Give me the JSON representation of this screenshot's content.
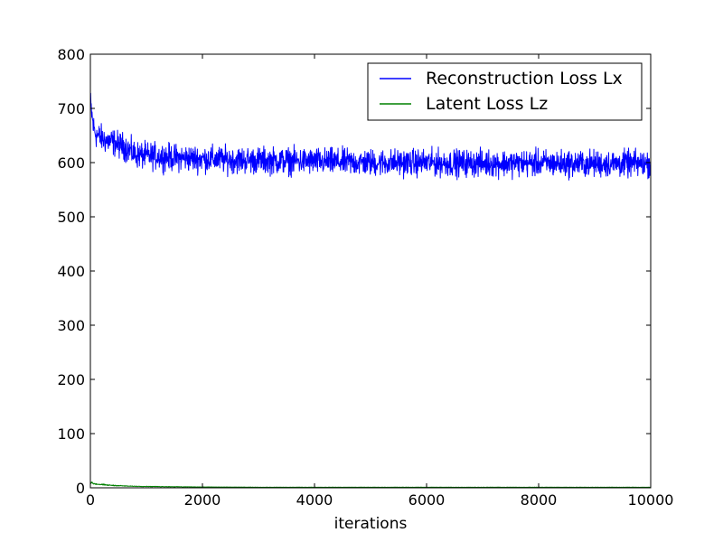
{
  "chart_data": {
    "type": "line",
    "title": "",
    "xlabel": "iterations",
    "ylabel": "",
    "xlim": [
      0,
      10000
    ],
    "ylim": [
      0,
      800
    ],
    "x_ticks": [
      0,
      2000,
      4000,
      6000,
      8000,
      10000
    ],
    "y_ticks": [
      0,
      100,
      200,
      300,
      400,
      500,
      600,
      700,
      800
    ],
    "grid": false,
    "legend_position": "top-right",
    "colors": {
      "reconstruction": "#0000ff",
      "latent": "#008000"
    },
    "series": [
      {
        "name": "Reconstruction Loss Lx",
        "color": "#0000ff",
        "x": [
          0,
          25,
          50,
          100,
          200,
          300,
          400,
          500,
          600,
          700,
          800,
          1000,
          1200,
          1500,
          2000,
          2500,
          3000,
          3500,
          4000,
          4500,
          5000,
          5500,
          6000,
          6500,
          7000,
          7500,
          8000,
          8500,
          9000,
          9500,
          10000
        ],
        "y": [
          712,
          690,
          668,
          652,
          645,
          640,
          638,
          633,
          630,
          622,
          615,
          612,
          612,
          609,
          607,
          605,
          604,
          603,
          602,
          601,
          600,
          600,
          600,
          599,
          599,
          599,
          599,
          598,
          598,
          598,
          598
        ],
        "noise_amplitude": 12
      },
      {
        "name": "Latent Loss Lz",
        "color": "#008000",
        "x": [
          0,
          25,
          50,
          100,
          200,
          300,
          500,
          700,
          1000,
          1500,
          2000,
          3000,
          4000,
          6000,
          8000,
          10000
        ],
        "y": [
          10,
          9,
          8,
          7,
          6,
          5,
          4,
          3,
          2.5,
          2,
          1.5,
          1,
          1,
          1,
          1,
          1
        ],
        "noise_amplitude": 1
      }
    ]
  }
}
